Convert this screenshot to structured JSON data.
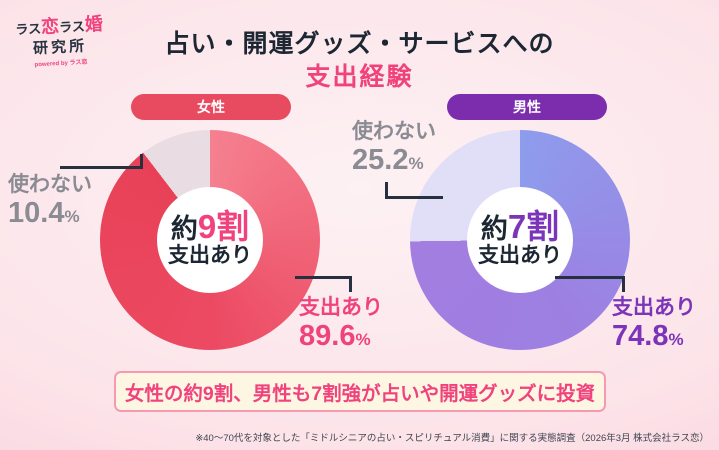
{
  "logo": {
    "p1": "ラス",
    "p2": "恋",
    "p3": "ラス",
    "p4": "婚",
    "line2": "研究所",
    "tagline": "powered by ラス恋"
  },
  "title": {
    "line1": "占い・開運グッズ・サービスへの",
    "line2": "支出経験"
  },
  "percent_sign": "%",
  "chart_data": [
    {
      "type": "pie",
      "donut": true,
      "title": "女性",
      "badge_color": "#e84a5f",
      "accent": "#f0437e",
      "gradient": [
        "#f5808f",
        "#e84157"
      ],
      "slices": [
        {
          "label": "支出あり",
          "value": 89.6,
          "color": "#ec4a63"
        },
        {
          "label": "使わない",
          "value": 10.4,
          "color": "#e9dde3"
        }
      ],
      "center": {
        "prefix": "約",
        "big": "9割",
        "sub": "支出あり"
      }
    },
    {
      "type": "pie",
      "donut": true,
      "title": "男性",
      "badge_color": "#7b2dae",
      "accent": "#7c35b8",
      "gradient": [
        "#8e9cec",
        "#a37ee0"
      ],
      "slices": [
        {
          "label": "支出あり",
          "value": 74.8,
          "color": "#9d7fe2"
        },
        {
          "label": "使わない",
          "value": 25.2,
          "color": "#e1def7"
        }
      ],
      "center": {
        "prefix": "約",
        "big": "7割",
        "sub": "支出あり"
      }
    }
  ],
  "banner": {
    "text": "女性の約9割、男性も7割強が占いや開運グッズに投資"
  },
  "footnote": {
    "text": "※40〜70代を対象とした「ミドルシニアの占い・スピリチュアル消費」に関する実態調査（2026年3月 株式会社ラス恋）"
  }
}
